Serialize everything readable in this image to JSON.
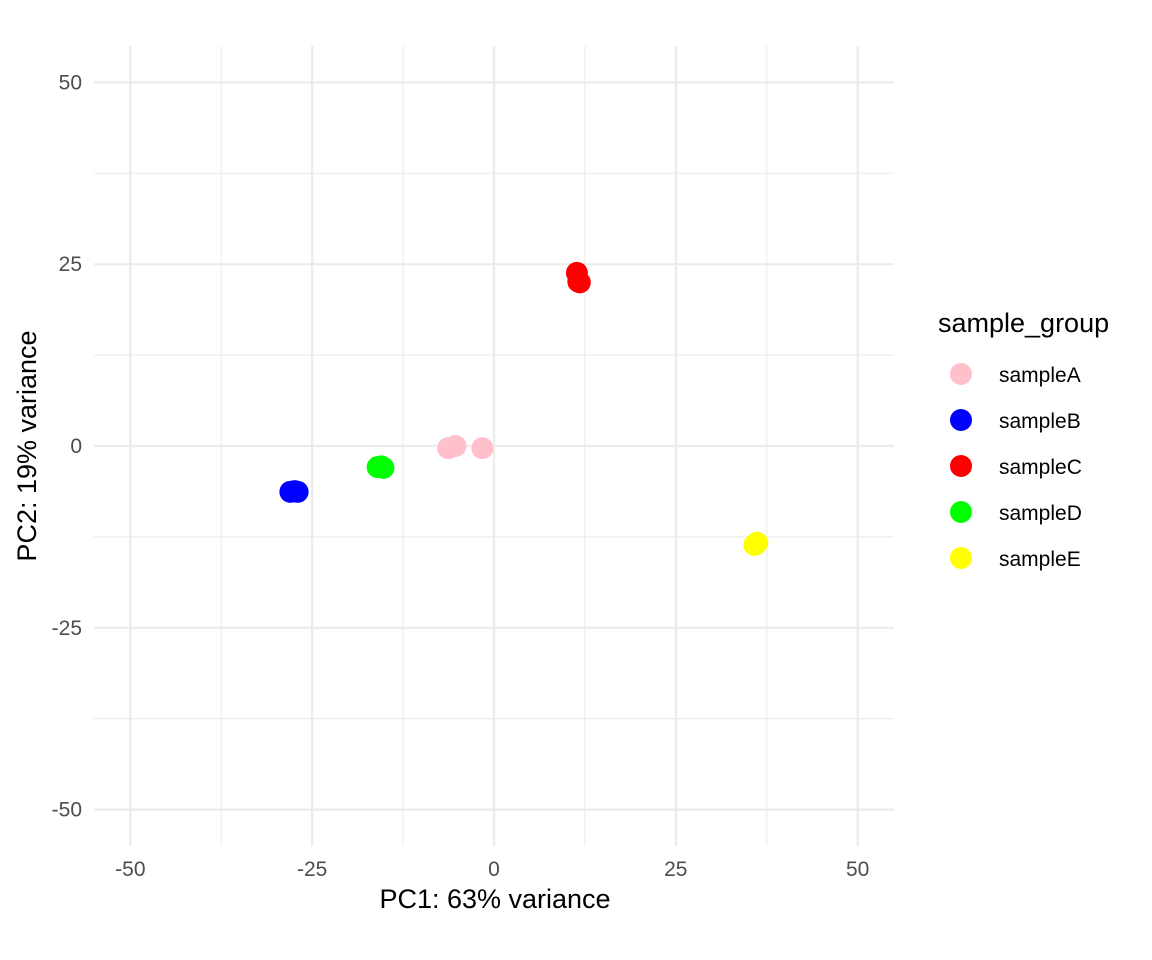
{
  "chart_data": {
    "type": "scatter",
    "xlabel": "PC1: 63% variance",
    "ylabel": "PC2: 19% variance",
    "xlim": [
      -55,
      55
    ],
    "ylim": [
      -55,
      55
    ],
    "xticks": [
      -50,
      -25,
      0,
      25,
      50
    ],
    "yticks": [
      -50,
      -25,
      0,
      25,
      50
    ],
    "x_tick_labels": [
      "-50",
      "-25",
      "0",
      "25",
      "50"
    ],
    "y_tick_labels": [
      "-50",
      "-25",
      "0",
      "25",
      "50"
    ],
    "grid": true,
    "legend": {
      "title": "sample_group",
      "placement": "right"
    },
    "series": [
      {
        "name": "sampleA",
        "color": "#FFC0CB",
        "points": [
          [
            -6.3,
            -0.3
          ],
          [
            -5.3,
            0.0
          ],
          [
            -1.6,
            -0.3
          ]
        ]
      },
      {
        "name": "sampleB",
        "color": "#0000FF",
        "points": [
          [
            -28.0,
            -6.3
          ],
          [
            -27.4,
            -6.2
          ],
          [
            -27.0,
            -6.3
          ]
        ]
      },
      {
        "name": "sampleC",
        "color": "#FF0000",
        "points": [
          [
            11.4,
            23.8
          ],
          [
            11.6,
            22.6
          ],
          [
            11.8,
            22.5
          ]
        ]
      },
      {
        "name": "sampleD",
        "color": "#00FF00",
        "points": [
          [
            -16.0,
            -2.9
          ],
          [
            -15.5,
            -2.8
          ],
          [
            -15.2,
            -3.0
          ]
        ]
      },
      {
        "name": "sampleE",
        "color": "#FFFF00",
        "points": [
          [
            35.8,
            -13.6
          ],
          [
            36.2,
            -13.3
          ],
          [
            36.0,
            -13.5
          ]
        ]
      }
    ]
  }
}
